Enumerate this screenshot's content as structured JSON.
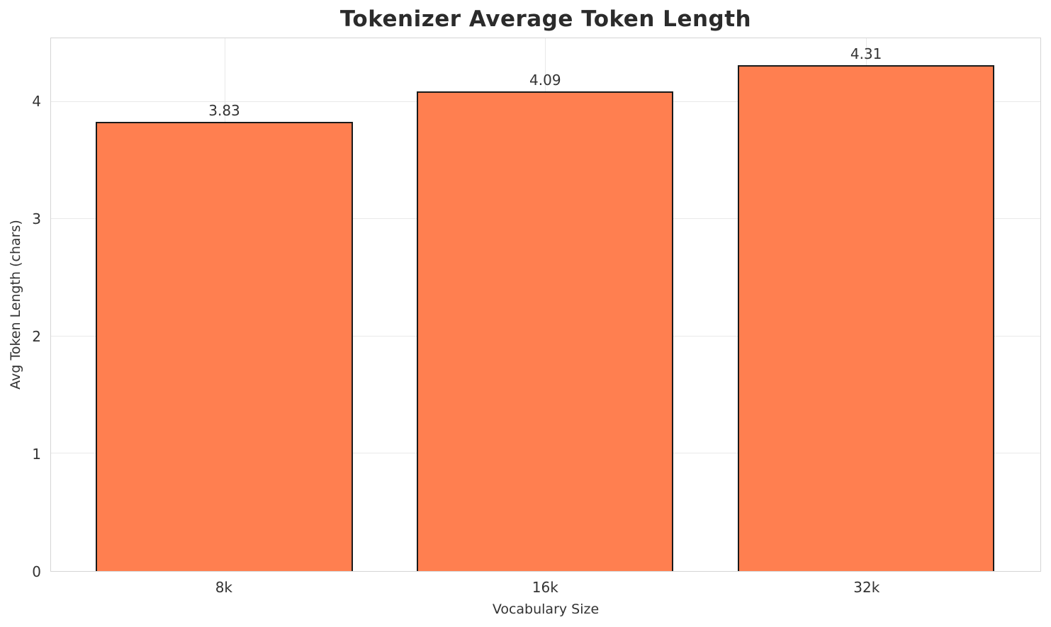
{
  "chart_data": {
    "type": "bar",
    "title": "Tokenizer Average Token Length",
    "xlabel": "Vocabulary Size",
    "ylabel": "Avg Token Length (chars)",
    "categories": [
      "8k",
      "16k",
      "32k"
    ],
    "values": [
      3.83,
      4.09,
      4.31
    ],
    "value_labels": [
      "3.83",
      "4.09",
      "4.31"
    ],
    "yticks": [
      0,
      1,
      2,
      3,
      4
    ],
    "ylim": [
      0,
      4.542
    ],
    "xlim": [
      -0.54,
      2.543
    ],
    "bar_width_units": 0.8,
    "grid": true,
    "legend": "none",
    "colors": {
      "bar_fill": "#FF7F50",
      "bar_edge": "#1a1a1a",
      "grid_line": "#e9e9e9",
      "spine": "#d5d5d5",
      "tick_text": "#333333",
      "title_text": "#2b2b2b",
      "background": "#ffffff"
    }
  }
}
